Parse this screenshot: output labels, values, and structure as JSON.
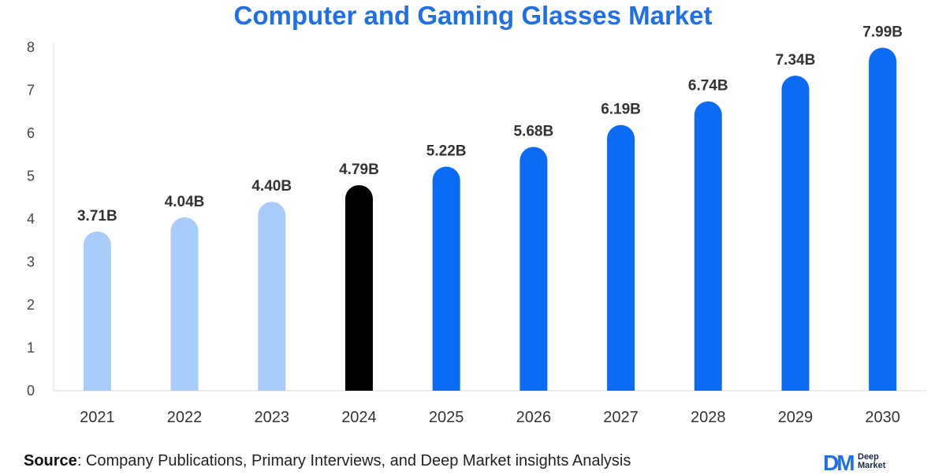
{
  "chart_data": {
    "type": "bar",
    "title": "Computer and Gaming Glasses Market",
    "categories": [
      "2021",
      "2022",
      "2023",
      "2024",
      "2025",
      "2026",
      "2027",
      "2028",
      "2029",
      "2030"
    ],
    "values": [
      3.71,
      4.04,
      4.4,
      4.79,
      5.22,
      5.68,
      6.19,
      6.74,
      7.34,
      7.99
    ],
    "data_labels": [
      "3.71B",
      "4.04B",
      "4.40B",
      "4.79B",
      "5.22B",
      "5.68B",
      "6.19B",
      "6.74B",
      "7.34B",
      "7.99B"
    ],
    "bar_colors": [
      "#a8cdfb",
      "#a8cdfb",
      "#a8cdfb",
      "#000000",
      "#0a6cf5",
      "#0a6cf5",
      "#0a6cf5",
      "#0a6cf5",
      "#0a6cf5",
      "#0a6cf5"
    ],
    "y_ticks": [
      0,
      1,
      2,
      3,
      4,
      5,
      6,
      7,
      8
    ],
    "ylim": [
      0,
      8
    ],
    "xlabel": "",
    "ylabel": "",
    "grid": false,
    "legend": "none"
  },
  "footer": {
    "source_label": "Source",
    "source_text": ": Company Publications, Primary Interviews, and Deep Market insights Analysis"
  },
  "logo": {
    "mark": "DM",
    "word_1": "Deep",
    "word_2": "Market"
  },
  "colors": {
    "title": "#1f6fe5",
    "historical": "#a8cdfb",
    "base_year": "#000000",
    "forecast": "#0a6cf5"
  }
}
